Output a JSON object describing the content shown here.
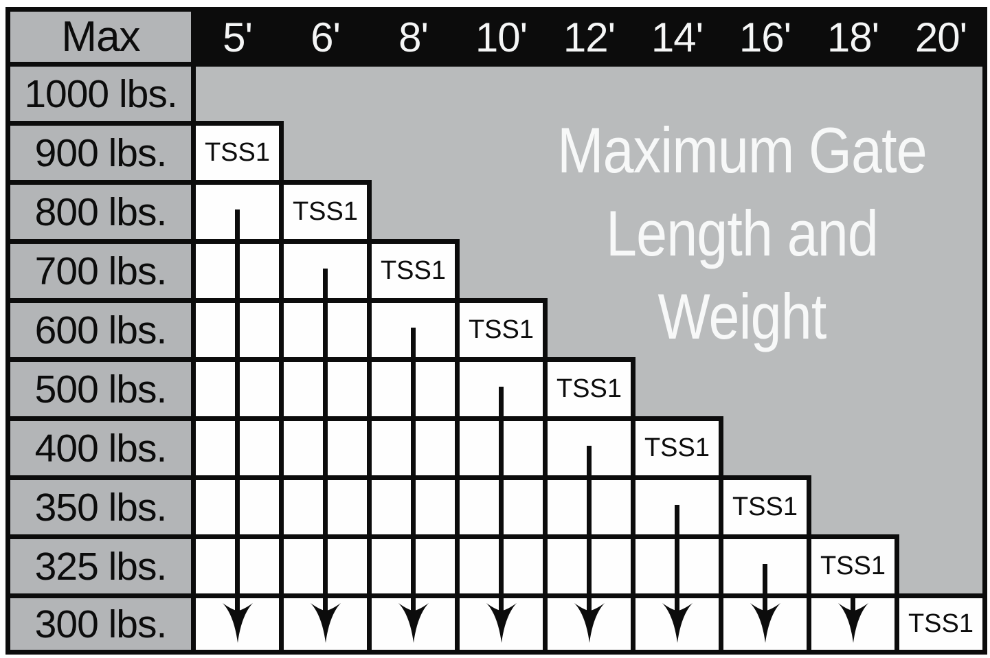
{
  "title_lines": [
    "Maximum Gate",
    "Length and",
    "Weight"
  ],
  "corner_label": "Max",
  "unit_label": "TSS1",
  "column_headers": [
    "5'",
    "6'",
    "8'",
    "10'",
    "12'",
    "14'",
    "16'",
    "18'",
    "20'"
  ],
  "row_labels": [
    "1000 lbs.",
    "900 lbs.",
    "800 lbs.",
    "700 lbs.",
    "600 lbs.",
    "500 lbs.",
    "400 lbs.",
    "350 lbs.",
    "325 lbs.",
    "300 lbs."
  ],
  "colors": {
    "ink_black": "#0c0c0c",
    "body_gray": "#b9bbbc",
    "label_gray": "#b3b5b7",
    "cell_white": "#fefefe",
    "title_white": "#f7f8f8"
  },
  "chart_data": {
    "type": "table",
    "title": "Maximum Gate Length and Weight",
    "series_label": "TSS1",
    "columns_gate_length": [
      "5'",
      "6'",
      "8'",
      "10'",
      "12'",
      "14'",
      "16'",
      "18'",
      "20'"
    ],
    "rows_max_weight": [
      "1000 lbs.",
      "900 lbs.",
      "800 lbs.",
      "700 lbs.",
      "600 lbs.",
      "500 lbs.",
      "400 lbs.",
      "350 lbs.",
      "325 lbs.",
      "300 lbs."
    ],
    "tss1_placement": [
      {
        "gate_length": "5'",
        "max_weight": "900 lbs."
      },
      {
        "gate_length": "6'",
        "max_weight": "800 lbs."
      },
      {
        "gate_length": "8'",
        "max_weight": "700 lbs."
      },
      {
        "gate_length": "10'",
        "max_weight": "600 lbs."
      },
      {
        "gate_length": "12'",
        "max_weight": "500 lbs."
      },
      {
        "gate_length": "14'",
        "max_weight": "400 lbs."
      },
      {
        "gate_length": "16'",
        "max_weight": "350 lbs."
      },
      {
        "gate_length": "18'",
        "max_weight": "325 lbs."
      },
      {
        "gate_length": "20'",
        "max_weight": "300 lbs."
      }
    ],
    "legend_position": "none",
    "grid": "stair-step matrix; arrows indicate rating applies to all weights at or below the TSS1 cell"
  }
}
